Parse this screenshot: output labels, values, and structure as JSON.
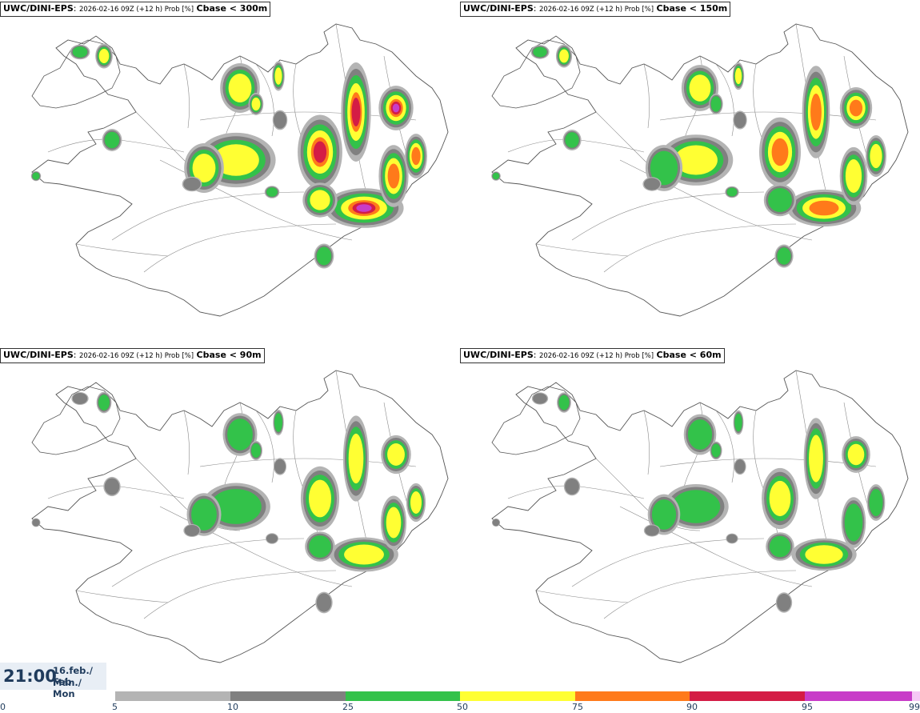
{
  "panels": [
    {
      "model": "UWC/DINI-EPS",
      "run": "2026-02-16 09Z (+12 h) Prob [%]",
      "threshold": "Cbase < 300m",
      "intensity": 1.0
    },
    {
      "model": "UWC/DINI-EPS",
      "run": "2026-02-16 09Z (+12 h) Prob [%]",
      "threshold": "Cbase < 150m",
      "intensity": 0.85
    },
    {
      "model": "UWC/DINI-EPS",
      "run": "2026-02-16 09Z (+12 h) Prob [%]",
      "threshold": "Cbase < 90m",
      "intensity": 0.7
    },
    {
      "model": "UWC/DINI-EPS",
      "run": "2026-02-16 09Z (+12 h) Prob [%]",
      "threshold": "Cbase < 60m",
      "intensity": 0.6
    }
  ],
  "time": {
    "clock": "21:00",
    "date_line1": "16.feb./ Feb",
    "date_line2": "Mán./ Mon"
  },
  "legend": {
    "ticks": [
      "0",
      "5",
      "10",
      "25",
      "50",
      "75",
      "90",
      "95",
      "99"
    ],
    "bins": [
      {
        "from": 5,
        "to": 10,
        "color": "#b4b4b4"
      },
      {
        "from": 10,
        "to": 25,
        "color": "#808080"
      },
      {
        "from": 25,
        "to": 50,
        "color": "#33c24a"
      },
      {
        "from": 50,
        "to": 75,
        "color": "#ffff33"
      },
      {
        "from": 75,
        "to": 90,
        "color": "#ff7a1a"
      },
      {
        "from": 90,
        "to": 95,
        "color": "#d41c45"
      },
      {
        "from": 95,
        "to": 99,
        "color": "#c83cc8"
      },
      {
        "from": 99,
        "to": 100,
        "color": "#f5c8f5"
      }
    ]
  }
}
